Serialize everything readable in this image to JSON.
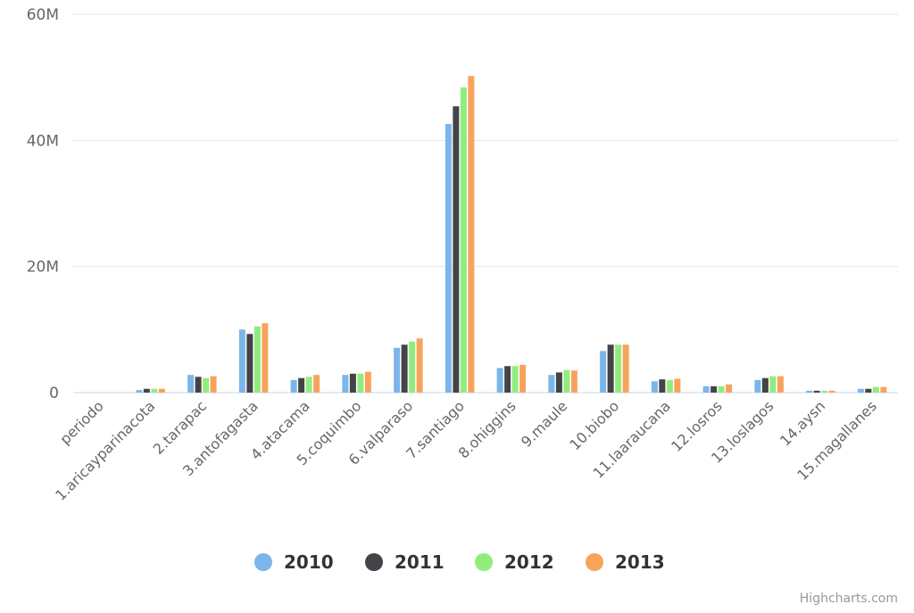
{
  "chart_data": {
    "type": "bar",
    "categories": [
      "periodo",
      "1.aricayparinacota",
      "2.tarapac",
      "3.antofagasta",
      "4.atacama",
      "5.coquimbo",
      "6.valparaso",
      "7.santiago",
      "8.ohiggins",
      "9.maule",
      "10.biobo",
      "11.laaraucana",
      "12.losros",
      "13.loslagos",
      "14.aysn",
      "15.magallanes"
    ],
    "series": [
      {
        "name": "2010",
        "color": "#7cb5ec",
        "values": [
          0,
          0.4,
          2.8,
          10.0,
          2.0,
          2.8,
          7.1,
          42.6,
          3.9,
          2.8,
          6.6,
          1.8,
          1.0,
          2.0,
          0.3,
          0.6
        ]
      },
      {
        "name": "2011",
        "color": "#434348",
        "values": [
          0,
          0.6,
          2.5,
          9.3,
          2.3,
          3.0,
          7.6,
          45.4,
          4.2,
          3.2,
          7.6,
          2.1,
          1.0,
          2.3,
          0.3,
          0.6
        ]
      },
      {
        "name": "2012",
        "color": "#90ed7d",
        "values": [
          0,
          0.6,
          2.3,
          10.5,
          2.5,
          3.0,
          8.1,
          48.4,
          4.2,
          3.6,
          7.6,
          2.0,
          1.0,
          2.6,
          0.3,
          0.9
        ]
      },
      {
        "name": "2013",
        "color": "#f7a35c",
        "values": [
          0,
          0.6,
          2.6,
          11.0,
          2.8,
          3.3,
          8.6,
          50.2,
          4.4,
          3.5,
          7.6,
          2.2,
          1.3,
          2.6,
          0.3,
          0.9
        ]
      }
    ],
    "unit_multiplier": 1000000,
    "yticks": [
      "0",
      "20M",
      "40M",
      "60M"
    ],
    "ytick_values": [
      0,
      20,
      40,
      60
    ],
    "ylim": [
      0,
      60
    ],
    "grid": true,
    "legend_position": "bottom",
    "title": "",
    "xlabel": "",
    "ylabel": ""
  },
  "credits": "Highcharts.com"
}
